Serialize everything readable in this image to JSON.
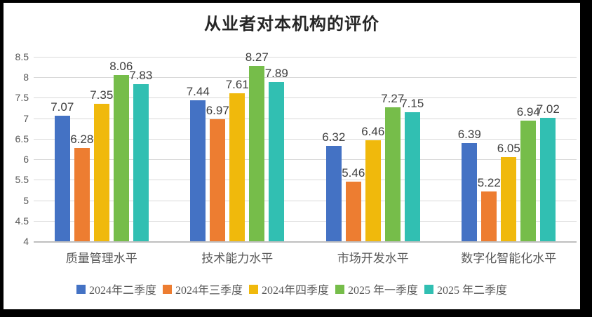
{
  "title": "从业者对本机构的评价",
  "chart_data": {
    "type": "bar",
    "title": "从业者对本机构的评价",
    "categories": [
      "质量管理水平",
      "技术能力水平",
      "市场开发水平",
      "数字化智能化水平"
    ],
    "series": [
      {
        "name": "2024年二季度",
        "color": "#4472C4",
        "values": [
          7.07,
          7.44,
          6.32,
          6.39
        ]
      },
      {
        "name": "2024年三季度",
        "color": "#ED7D31",
        "values": [
          6.28,
          6.97,
          5.46,
          5.22
        ]
      },
      {
        "name": "2024年四季度",
        "color": "#F0B90C",
        "values": [
          7.35,
          7.61,
          6.46,
          6.05
        ]
      },
      {
        "name": "2025 年一季度",
        "color": "#76BD4A",
        "values": [
          8.06,
          8.27,
          7.27,
          6.94
        ]
      },
      {
        "name": "2025 年二季度",
        "color": "#31BFB2",
        "values": [
          7.83,
          7.89,
          7.15,
          7.02
        ]
      }
    ],
    "y_axis": {
      "min": 4,
      "max": 8.5,
      "step": 0.5,
      "tick_labels": [
        "4",
        "4.5",
        "5",
        "5.5",
        "6",
        "6.5",
        "7",
        "7.5",
        "8",
        "8.5"
      ]
    },
    "grid": true,
    "data_labels": true,
    "legend_position": "bottom",
    "colors": {
      "gridline": "#D9D9D9",
      "axis_line": "#BFBFBF",
      "axis_text": "#595959",
      "data_label_text": "#404040",
      "title_text": "#262626"
    }
  }
}
